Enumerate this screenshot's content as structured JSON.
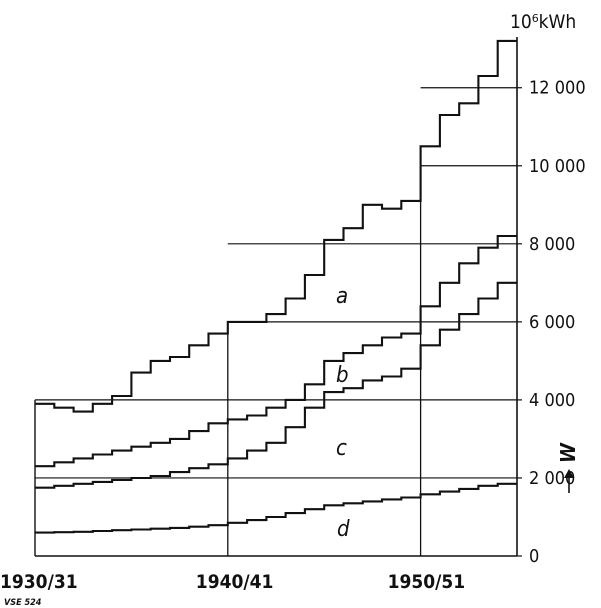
{
  "chart_data": {
    "type": "line",
    "step": true,
    "unit": "10⁶kWh",
    "y_axis_symbol": "W",
    "code_label": "VSE 524",
    "x_tick_labels": [
      "1930/31",
      "1940/41",
      "1950/51"
    ],
    "y_tick_labels": [
      "0",
      "2 000",
      "4 000",
      "6 000",
      "8 000",
      "10 000",
      "12 000"
    ],
    "ylim": [
      0,
      13300
    ],
    "x_years": [
      1930,
      1931,
      1932,
      1933,
      1934,
      1935,
      1936,
      1937,
      1938,
      1939,
      1940,
      1941,
      1942,
      1943,
      1944,
      1945,
      1946,
      1947,
      1948,
      1949,
      1950,
      1951,
      1952,
      1953,
      1954
    ],
    "series": [
      {
        "name": "a",
        "values": [
          3900,
          3800,
          3700,
          3900,
          4100,
          4700,
          5000,
          5100,
          5400,
          5700,
          6000,
          6000,
          6200,
          6600,
          7200,
          8100,
          8400,
          9000,
          8900,
          9100,
          10500,
          11300,
          11600,
          12300,
          13200
        ]
      },
      {
        "name": "b",
        "values": [
          2300,
          2400,
          2500,
          2600,
          2700,
          2800,
          2900,
          3000,
          3200,
          3400,
          3500,
          3600,
          3800,
          4000,
          4400,
          5000,
          5200,
          5400,
          5600,
          5700,
          6400,
          7000,
          7500,
          7900,
          8200
        ]
      },
      {
        "name": "c",
        "values": [
          1750,
          1800,
          1850,
          1900,
          1950,
          2000,
          2050,
          2150,
          2250,
          2350,
          2500,
          2700,
          2900,
          3300,
          3800,
          4200,
          4300,
          4500,
          4600,
          4800,
          5400,
          5800,
          6200,
          6600,
          7000
        ]
      },
      {
        "name": "d",
        "values": [
          600,
          610,
          620,
          640,
          660,
          680,
          700,
          720,
          750,
          790,
          850,
          920,
          1000,
          1100,
          1200,
          1300,
          1350,
          1400,
          1450,
          1500,
          1580,
          1650,
          1720,
          1800,
          1850
        ]
      }
    ]
  }
}
